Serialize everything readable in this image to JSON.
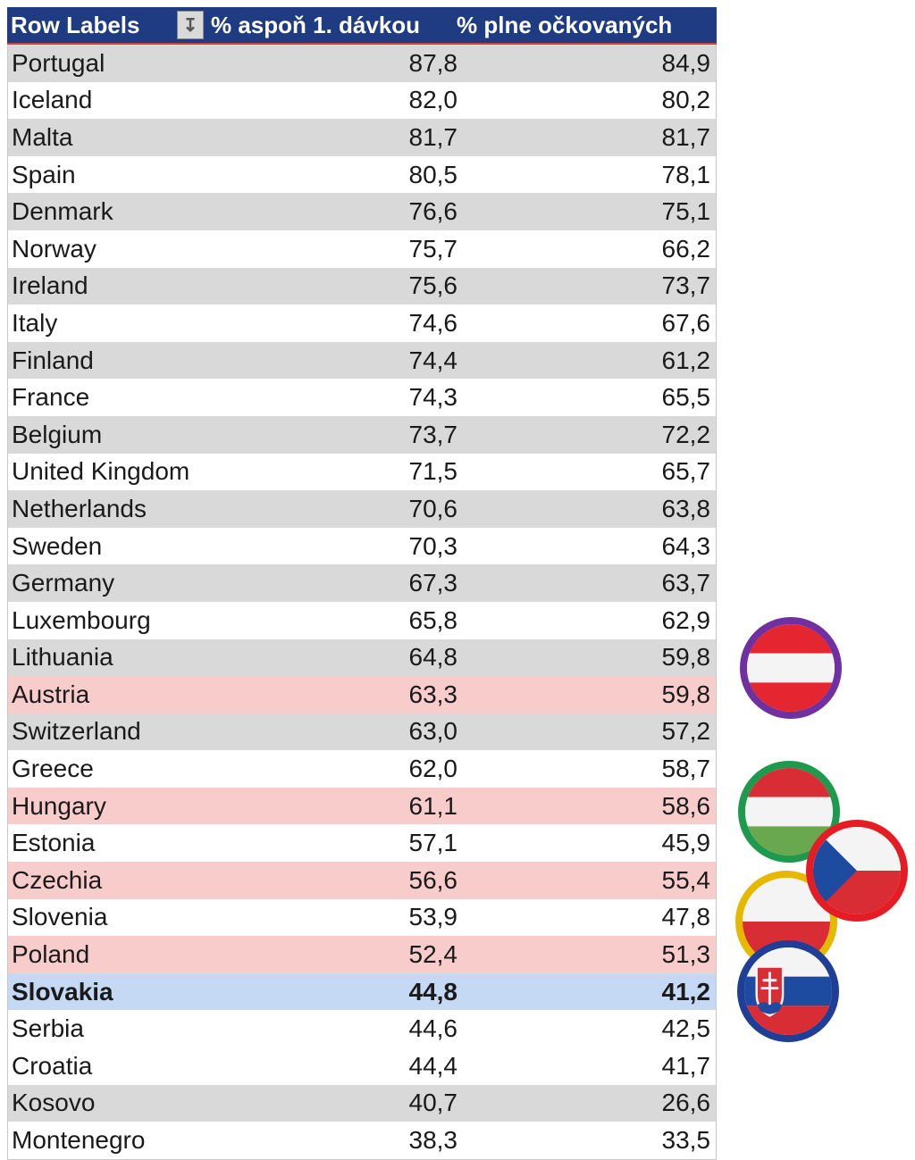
{
  "header": {
    "col1": "Row Labels",
    "col2": "% aspoň 1. dávkou",
    "col3": "% plne očkovaných",
    "filter_icon": "filter-sort-icon"
  },
  "rows": [
    {
      "country": "Portugal",
      "first": "87,8",
      "full": "84,9",
      "style": "gray"
    },
    {
      "country": "Iceland",
      "first": "82,0",
      "full": "80,2",
      "style": "white"
    },
    {
      "country": "Malta",
      "first": "81,7",
      "full": "81,7",
      "style": "gray"
    },
    {
      "country": "Spain",
      "first": "80,5",
      "full": "78,1",
      "style": "white"
    },
    {
      "country": "Denmark",
      "first": "76,6",
      "full": "75,1",
      "style": "gray"
    },
    {
      "country": "Norway",
      "first": "75,7",
      "full": "66,2",
      "style": "white"
    },
    {
      "country": "Ireland",
      "first": "75,6",
      "full": "73,7",
      "style": "gray"
    },
    {
      "country": "Italy",
      "first": "74,6",
      "full": "67,6",
      "style": "white"
    },
    {
      "country": "Finland",
      "first": "74,4",
      "full": "61,2",
      "style": "gray"
    },
    {
      "country": "France",
      "first": "74,3",
      "full": "65,5",
      "style": "white"
    },
    {
      "country": "Belgium",
      "first": "73,7",
      "full": "72,2",
      "style": "gray"
    },
    {
      "country": "United Kingdom",
      "first": "71,5",
      "full": "65,7",
      "style": "white"
    },
    {
      "country": "Netherlands",
      "first": "70,6",
      "full": "63,8",
      "style": "gray"
    },
    {
      "country": "Sweden",
      "first": "70,3",
      "full": "64,3",
      "style": "white"
    },
    {
      "country": "Germany",
      "first": "67,3",
      "full": "63,7",
      "style": "gray"
    },
    {
      "country": "Luxembourg",
      "first": "65,8",
      "full": "62,9",
      "style": "white"
    },
    {
      "country": "Lithuania",
      "first": "64,8",
      "full": "59,8",
      "style": "gray"
    },
    {
      "country": "Austria",
      "first": "63,3",
      "full": "59,8",
      "style": "pink"
    },
    {
      "country": "Switzerland",
      "first": "63,0",
      "full": "57,2",
      "style": "gray"
    },
    {
      "country": "Greece",
      "first": "62,0",
      "full": "58,7",
      "style": "white"
    },
    {
      "country": "Hungary",
      "first": "61,1",
      "full": "58,6",
      "style": "pink"
    },
    {
      "country": "Estonia",
      "first": "57,1",
      "full": "45,9",
      "style": "white"
    },
    {
      "country": "Czechia",
      "first": "56,6",
      "full": "55,4",
      "style": "pink"
    },
    {
      "country": "Slovenia",
      "first": "53,9",
      "full": "47,8",
      "style": "white"
    },
    {
      "country": "Poland",
      "first": "52,4",
      "full": "51,3",
      "style": "pink"
    },
    {
      "country": "Slovakia",
      "first": "44,8",
      "full": "41,2",
      "style": "blue"
    },
    {
      "country": "Serbia",
      "first": "44,6",
      "full": "42,5",
      "style": "white"
    },
    {
      "country": "Croatia",
      "first": "44,4",
      "full": "41,7",
      "style": "white"
    },
    {
      "country": "Kosovo",
      "first": "40,7",
      "full": "26,6",
      "style": "gray"
    },
    {
      "country": "Montenegro",
      "first": "38,3",
      "full": "33,5",
      "style": "white"
    }
  ],
  "flags": [
    {
      "name": "austria-flag-icon",
      "ring": "#7030a0"
    },
    {
      "name": "hungary-flag-icon",
      "ring": "#1e9a4e"
    },
    {
      "name": "czechia-flag-icon",
      "ring": "#e51c23"
    },
    {
      "name": "poland-flag-icon",
      "ring": "#e6b800"
    },
    {
      "name": "slovakia-flag-icon",
      "ring": "#1f3f97"
    }
  ]
}
